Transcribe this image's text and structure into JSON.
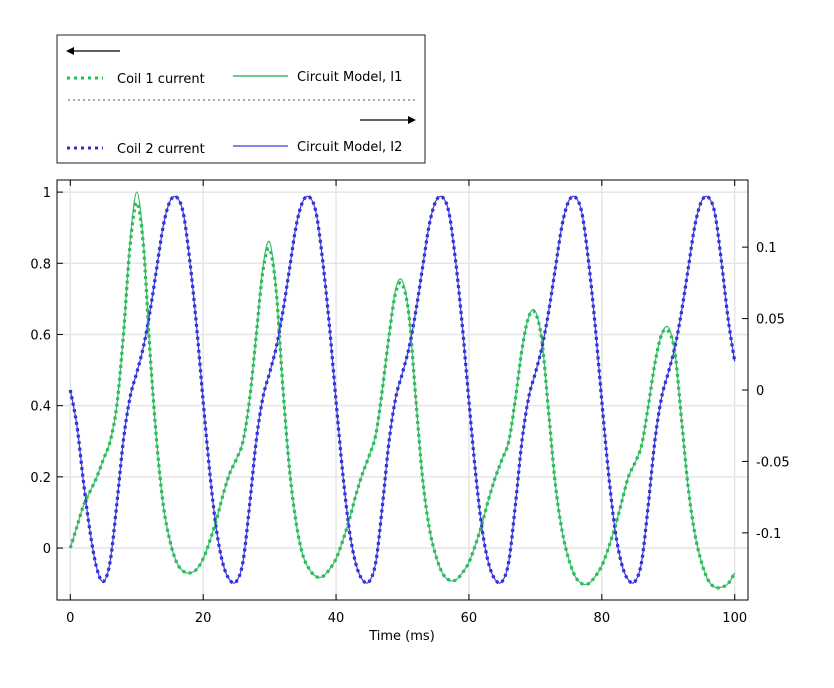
{
  "chart_data": {
    "type": "line",
    "xlabel": "Time (ms)",
    "ylabel": "",
    "y2label": "",
    "xlim": [
      -2,
      102
    ],
    "ylim": [
      -0.146,
      1.034
    ],
    "y2lim": [
      -0.147,
      0.147
    ],
    "xticks": [
      0,
      20,
      40,
      60,
      80,
      100
    ],
    "yticks": [
      0,
      0.2,
      0.4,
      0.6,
      0.8,
      1
    ],
    "y2ticks": [
      -0.1,
      -0.05,
      0,
      0.05,
      0.1
    ],
    "grid": true,
    "legend_position": "top-left, above plot",
    "legend": {
      "left_axis_arrow": "left-arrow",
      "right_axis_arrow": "right-arrow"
    },
    "x": [
      0,
      1,
      2,
      3,
      4,
      5,
      6,
      7,
      8,
      9,
      10,
      11,
      12,
      13,
      14,
      15,
      16,
      17,
      18,
      19,
      20,
      21,
      22,
      23,
      24,
      25,
      26,
      27,
      28,
      29,
      30,
      31,
      32,
      33,
      34,
      35,
      36,
      37,
      38,
      39,
      40,
      41,
      42,
      43,
      44,
      45,
      46,
      47,
      48,
      49,
      50,
      51,
      52,
      53,
      54,
      55,
      56,
      57,
      58,
      59,
      60,
      61,
      62,
      63,
      64,
      65,
      66,
      67,
      68,
      69,
      70,
      71,
      72,
      73,
      74,
      75,
      76,
      77,
      78,
      79,
      80,
      81,
      82,
      83,
      84,
      85,
      86,
      87,
      88,
      89,
      90,
      91,
      92,
      93,
      94,
      95,
      96,
      97,
      98,
      99,
      100
    ],
    "series": [
      {
        "name": "Coil 1 current",
        "axis": "left",
        "style": "dotted",
        "color": "#1fbf4f",
        "values": [
          0,
          0.06,
          0.12,
          0.16,
          0.2,
          0.25,
          0.3,
          0.4,
          0.6,
          0.85,
          0.97,
          0.85,
          0.55,
          0.3,
          0.12,
          0.02,
          -0.04,
          -0.065,
          -0.07,
          -0.06,
          -0.03,
          0.02,
          0.08,
          0.15,
          0.21,
          0.25,
          0.3,
          0.42,
          0.6,
          0.78,
          0.84,
          0.72,
          0.45,
          0.22,
          0.07,
          -0.02,
          -0.06,
          -0.08,
          -0.08,
          -0.06,
          -0.03,
          0.02,
          0.08,
          0.15,
          0.21,
          0.26,
          0.32,
          0.45,
          0.6,
          0.72,
          0.74,
          0.65,
          0.42,
          0.2,
          0.06,
          -0.02,
          -0.07,
          -0.09,
          -0.09,
          -0.07,
          -0.04,
          0.01,
          0.07,
          0.14,
          0.2,
          0.25,
          0.3,
          0.42,
          0.56,
          0.65,
          0.66,
          0.58,
          0.38,
          0.18,
          0.05,
          -0.03,
          -0.08,
          -0.1,
          -0.1,
          -0.08,
          -0.05,
          0,
          0.06,
          0.13,
          0.2,
          0.24,
          0.29,
          0.4,
          0.52,
          0.6,
          0.61,
          0.55,
          0.36,
          0.17,
          0.04,
          -0.04,
          -0.09,
          -0.11,
          -0.11,
          -0.1,
          -0.07
        ]
      },
      {
        "name": "Circuit Model, I1",
        "axis": "left",
        "style": "solid",
        "color": "#3cb86a",
        "values": [
          0,
          0.06,
          0.12,
          0.16,
          0.2,
          0.25,
          0.3,
          0.4,
          0.6,
          0.86,
          1.0,
          0.86,
          0.55,
          0.3,
          0.12,
          0.02,
          -0.04,
          -0.065,
          -0.07,
          -0.06,
          -0.03,
          0.02,
          0.08,
          0.15,
          0.21,
          0.25,
          0.3,
          0.42,
          0.6,
          0.79,
          0.86,
          0.72,
          0.45,
          0.22,
          0.07,
          -0.02,
          -0.06,
          -0.08,
          -0.08,
          -0.06,
          -0.03,
          0.02,
          0.08,
          0.15,
          0.21,
          0.26,
          0.32,
          0.45,
          0.6,
          0.73,
          0.75,
          0.65,
          0.42,
          0.2,
          0.06,
          -0.02,
          -0.07,
          -0.09,
          -0.09,
          -0.07,
          -0.04,
          0.01,
          0.07,
          0.14,
          0.2,
          0.25,
          0.3,
          0.42,
          0.56,
          0.65,
          0.665,
          0.58,
          0.38,
          0.18,
          0.05,
          -0.03,
          -0.08,
          -0.1,
          -0.1,
          -0.08,
          -0.05,
          0,
          0.06,
          0.13,
          0.2,
          0.24,
          0.29,
          0.4,
          0.52,
          0.6,
          0.62,
          0.55,
          0.36,
          0.17,
          0.04,
          -0.04,
          -0.09,
          -0.11,
          -0.11,
          -0.1,
          -0.07
        ]
      },
      {
        "name": "Coil 2 current",
        "axis": "right",
        "style": "dotted",
        "color": "#2b2bd6",
        "values": [
          0,
          -0.025,
          -0.065,
          -0.1,
          -0.125,
          -0.134,
          -0.12,
          -0.08,
          -0.035,
          -0.005,
          0.012,
          0.03,
          0.055,
          0.085,
          0.115,
          0.132,
          0.135,
          0.124,
          0.09,
          0.045,
          -0.008,
          -0.058,
          -0.098,
          -0.122,
          -0.133,
          -0.134,
          -0.12,
          -0.08,
          -0.035,
          -0.005,
          0.012,
          0.03,
          0.055,
          0.085,
          0.115,
          0.132,
          0.135,
          0.124,
          0.09,
          0.045,
          -0.008,
          -0.058,
          -0.098,
          -0.122,
          -0.133,
          -0.134,
          -0.12,
          -0.08,
          -0.035,
          -0.005,
          0.012,
          0.03,
          0.055,
          0.085,
          0.115,
          0.132,
          0.135,
          0.124,
          0.09,
          0.045,
          -0.008,
          -0.058,
          -0.098,
          -0.122,
          -0.133,
          -0.134,
          -0.12,
          -0.08,
          -0.035,
          -0.005,
          0.012,
          0.03,
          0.055,
          0.085,
          0.115,
          0.132,
          0.135,
          0.124,
          0.09,
          0.045,
          -0.008,
          -0.058,
          -0.098,
          -0.122,
          -0.133,
          -0.134,
          -0.12,
          -0.08,
          -0.035,
          -0.005,
          0.012,
          0.03,
          0.055,
          0.085,
          0.115,
          0.132,
          0.135,
          0.124,
          0.09,
          0.05,
          0.02
        ]
      },
      {
        "name": "Circuit Model, I2",
        "axis": "right",
        "style": "solid",
        "color": "#3a3ae0",
        "values": [
          0,
          -0.025,
          -0.065,
          -0.1,
          -0.125,
          -0.134,
          -0.12,
          -0.08,
          -0.035,
          -0.005,
          0.012,
          0.03,
          0.055,
          0.085,
          0.115,
          0.132,
          0.135,
          0.124,
          0.09,
          0.045,
          -0.008,
          -0.058,
          -0.098,
          -0.122,
          -0.133,
          -0.134,
          -0.12,
          -0.08,
          -0.035,
          -0.005,
          0.012,
          0.03,
          0.055,
          0.085,
          0.115,
          0.132,
          0.135,
          0.124,
          0.09,
          0.045,
          -0.008,
          -0.058,
          -0.098,
          -0.122,
          -0.133,
          -0.134,
          -0.12,
          -0.08,
          -0.035,
          -0.005,
          0.012,
          0.03,
          0.055,
          0.085,
          0.115,
          0.132,
          0.135,
          0.124,
          0.09,
          0.045,
          -0.008,
          -0.058,
          -0.098,
          -0.122,
          -0.133,
          -0.134,
          -0.12,
          -0.08,
          -0.035,
          -0.005,
          0.012,
          0.03,
          0.055,
          0.085,
          0.115,
          0.132,
          0.135,
          0.124,
          0.09,
          0.045,
          -0.008,
          -0.058,
          -0.098,
          -0.122,
          -0.133,
          -0.134,
          -0.12,
          -0.08,
          -0.035,
          -0.005,
          0.012,
          0.03,
          0.055,
          0.085,
          0.115,
          0.132,
          0.135,
          0.124,
          0.09,
          0.05,
          0.02
        ]
      }
    ]
  }
}
